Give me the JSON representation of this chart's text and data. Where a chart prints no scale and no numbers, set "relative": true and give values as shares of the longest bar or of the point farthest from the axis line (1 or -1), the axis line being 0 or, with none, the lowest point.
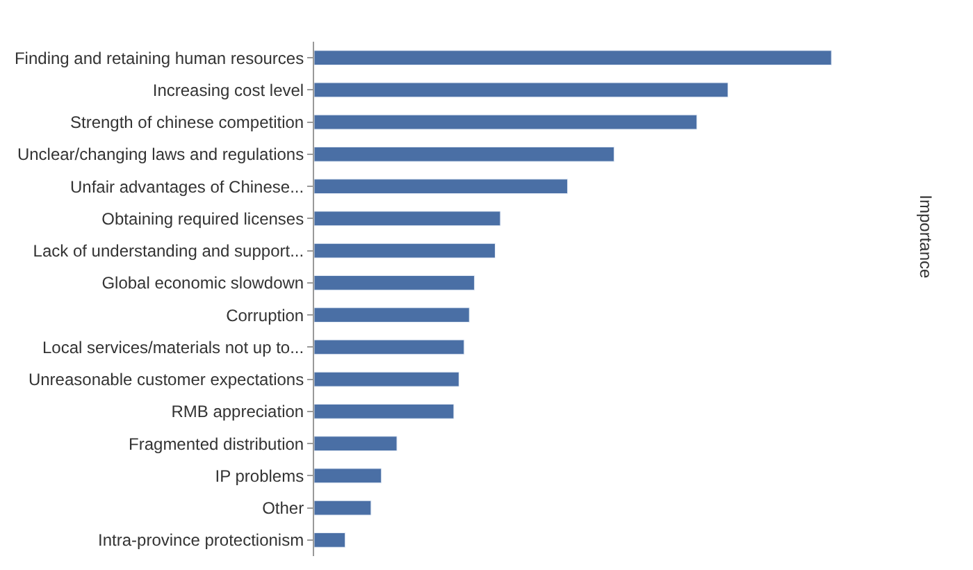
{
  "chart_data": {
    "type": "bar",
    "orientation": "horizontal",
    "relative": true,
    "categories": [
      "Finding and retaining human resources",
      "Increasing cost level",
      "Strength of chinese competition",
      "Unclear/changing laws and regulations",
      "Unfair advantages of Chinese...",
      "Obtaining required licenses",
      "Lack of understanding and support...",
      "Global economic slowdown",
      "Corruption",
      "Local services/materials not up to...",
      "Unreasonable customer expectations",
      "RMB appreciation",
      "Fragmented distribution",
      "IP problems",
      "Other",
      "Intra-province protectionism"
    ],
    "values": [
      1,
      0.8,
      0.74,
      0.58,
      0.49,
      0.36,
      0.35,
      0.31,
      0.3,
      0.29,
      0.28,
      0.27,
      0.16,
      0.13,
      0.11,
      0.06
    ],
    "color": "#4a6fa5",
    "annotations": [
      "Importance"
    ]
  }
}
